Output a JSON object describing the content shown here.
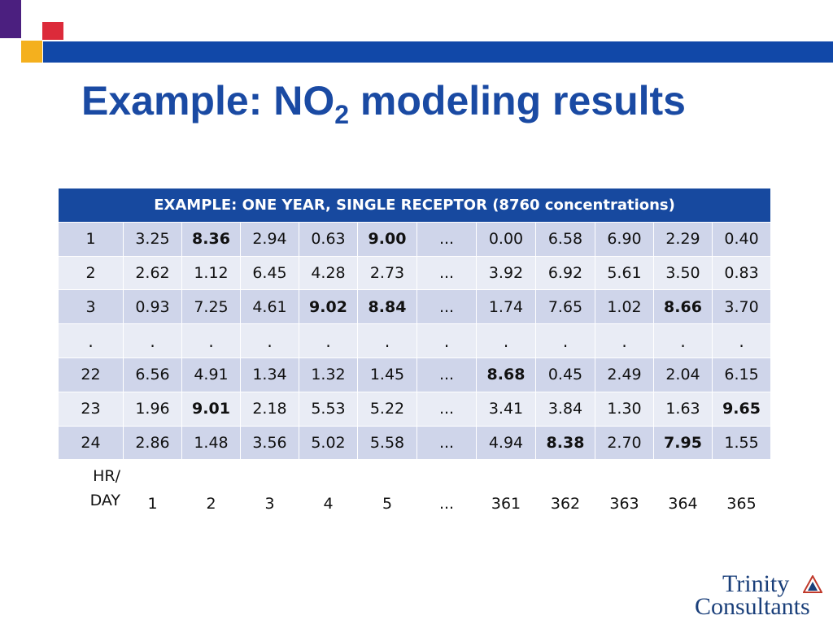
{
  "title": {
    "main": "Example: NO",
    "subscript": "2",
    "rest": " modeling results"
  },
  "table": {
    "header": "EXAMPLE:  ONE YEAR, SINGLE RECEPTOR (8760 concentrations)",
    "rows": [
      {
        "hour": "1",
        "values": [
          "3.25",
          "8.36",
          "2.94",
          "0.63",
          "9.00",
          "...",
          "0.00",
          "6.58",
          "6.90",
          "2.29",
          "0.40"
        ]
      },
      {
        "hour": "2",
        "values": [
          "2.62",
          "1.12",
          "6.45",
          "4.28",
          "2.73",
          "...",
          "3.92",
          "6.92",
          "5.61",
          "3.50",
          "0.83"
        ]
      },
      {
        "hour": "3",
        "values": [
          "0.93",
          "7.25",
          "4.61",
          "9.02",
          "8.84",
          "...",
          "1.74",
          "7.65",
          "1.02",
          "8.66",
          "3.70"
        ]
      },
      {
        "hour": ".",
        "values": [
          ".",
          ".",
          ".",
          ".",
          ".",
          ".",
          ".",
          ".",
          ".",
          ".",
          "."
        ]
      },
      {
        "hour": "22",
        "values": [
          "6.56",
          "4.91",
          "1.34",
          "1.32",
          "1.45",
          "...",
          "8.68",
          "0.45",
          "2.49",
          "2.04",
          "6.15"
        ]
      },
      {
        "hour": "23",
        "values": [
          "1.96",
          "9.01",
          "2.18",
          "5.53",
          "5.22",
          "...",
          "3.41",
          "3.84",
          "1.30",
          "1.63",
          "9.65"
        ]
      },
      {
        "hour": "24",
        "values": [
          "2.86",
          "1.48",
          "3.56",
          "5.02",
          "5.58",
          "...",
          "4.94",
          "8.38",
          "2.70",
          "7.95",
          "1.55"
        ]
      }
    ],
    "footer": {
      "label_line1": "HR/",
      "label_line2": "DAY",
      "days": [
        "1",
        "2",
        "3",
        "4",
        "5",
        "...",
        "361",
        "362",
        "363",
        "364",
        "365"
      ]
    }
  },
  "logo": {
    "line1": "Trinity",
    "line2": "Consultants"
  },
  "colors": {
    "accent": "#1148a8",
    "title": "#1a4aa3",
    "row_dark": "#cfd5ea",
    "row_light": "#e9ecf5"
  }
}
